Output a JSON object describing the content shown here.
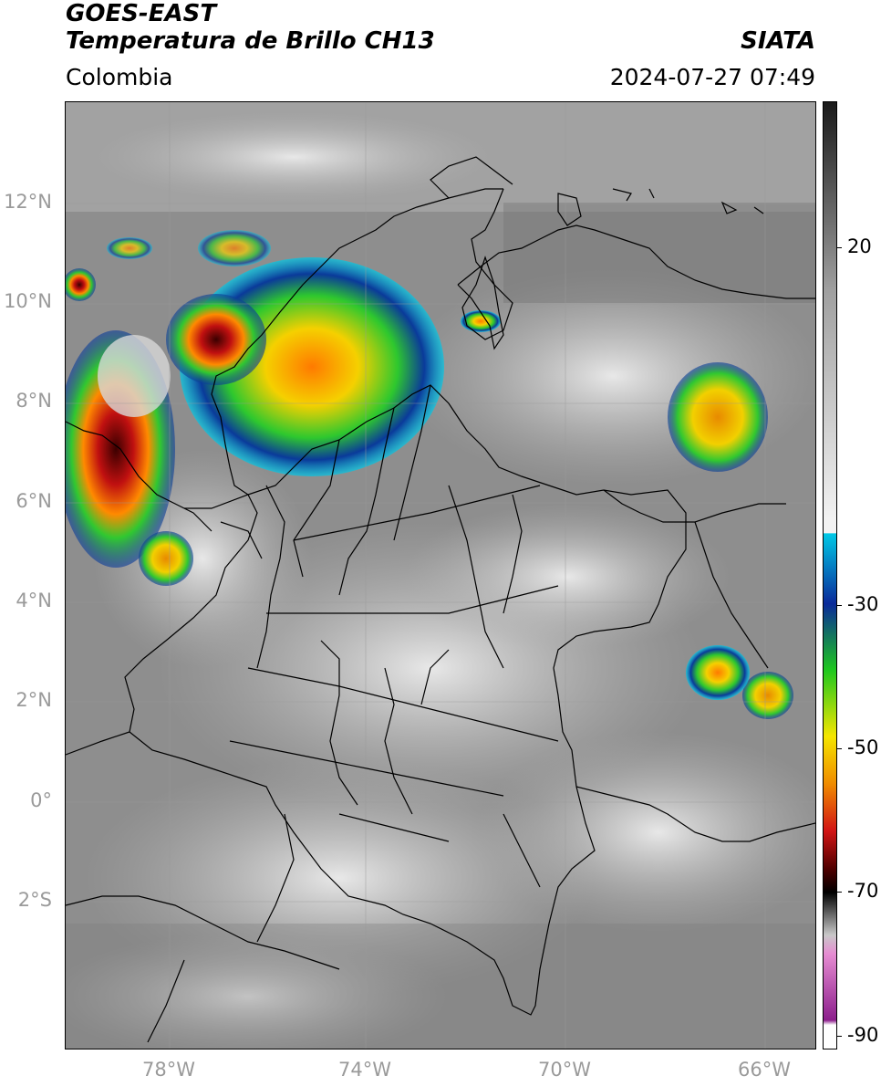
{
  "header": {
    "title_line1": "GOES-EAST",
    "title_line2": "Temperatura de Brillo CH13",
    "region": "Colombia",
    "source": "SIATA",
    "datetime": "2024-07-27 07:49"
  },
  "axes": {
    "lat_labels": [
      "12°N",
      "10°N",
      "8°N",
      "6°N",
      "4°N",
      "2°N",
      "0°",
      "2°S"
    ],
    "lon_labels": [
      "78°W",
      "74°W",
      "70°W",
      "66°W"
    ]
  },
  "colorbar": {
    "tick_labels": [
      "20",
      "-30",
      "-50",
      "-70",
      "-90"
    ],
    "colors": {
      "warm_gray_top": "#1a1a1a",
      "gray_mid": "#a0a0a0",
      "white": "#f2f2f2",
      "cyan": "#00c8e6",
      "blue": "#0a2a9a",
      "green": "#1ec81e",
      "yellow": "#f5e600",
      "orange": "#f08c00",
      "red": "#d21414",
      "dark_red": "#500000",
      "black": "#000000",
      "pink": "#e68cd2",
      "purple": "#8c1e8c"
    }
  },
  "map": {
    "background_gray": "#8a8a8a",
    "border_color": "#000000"
  }
}
